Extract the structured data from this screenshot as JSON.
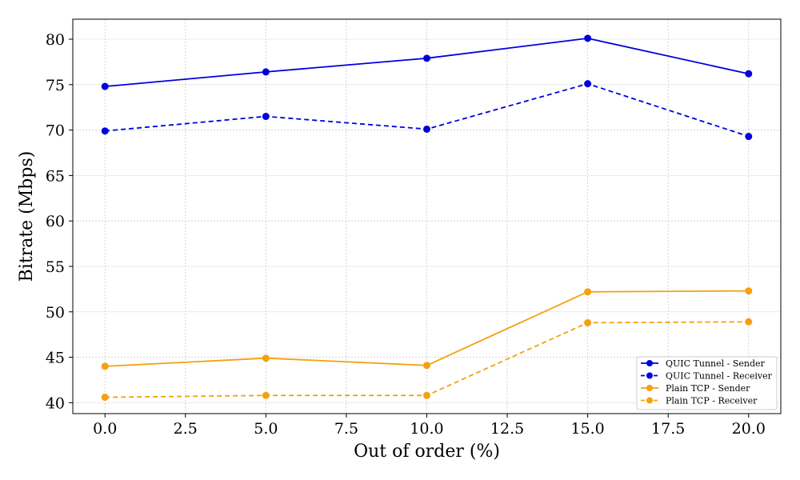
{
  "chart_data": {
    "type": "line",
    "title": "",
    "xlabel": "Out of order (%)",
    "ylabel": "Bitrate (Mbps)",
    "xlim": [
      -1,
      21
    ],
    "ylim": [
      38.8,
      82.2
    ],
    "x_ticks": [
      0.0,
      2.5,
      5.0,
      7.5,
      10.0,
      12.5,
      15.0,
      17.5,
      20.0
    ],
    "x_tick_labels": [
      "0.0",
      "2.5",
      "5.0",
      "7.5",
      "10.0",
      "12.5",
      "15.0",
      "17.5",
      "20.0"
    ],
    "y_ticks": [
      40,
      45,
      50,
      55,
      60,
      65,
      70,
      75,
      80
    ],
    "y_tick_labels": [
      "40",
      "45",
      "50",
      "55",
      "60",
      "65",
      "70",
      "75",
      "80"
    ],
    "grid": true,
    "legend_position": "bottom-right",
    "x": [
      0,
      5,
      10,
      15,
      20
    ],
    "series": [
      {
        "name": "QUIC Tunnel - Sender",
        "values": [
          74.8,
          76.4,
          77.9,
          80.1,
          76.2
        ],
        "color": "#0000dd",
        "dash": "solid"
      },
      {
        "name": "QUIC Tunnel - Receiver",
        "values": [
          69.9,
          71.5,
          70.1,
          75.1,
          69.3
        ],
        "color": "#0000dd",
        "dash": "dashed"
      },
      {
        "name": "Plain TCP - Sender",
        "values": [
          44.0,
          44.9,
          44.1,
          52.2,
          52.3
        ],
        "color": "#f5a00f",
        "dash": "solid"
      },
      {
        "name": "Plain TCP - Receiver",
        "values": [
          40.6,
          40.8,
          40.8,
          48.8,
          48.9
        ],
        "color": "#f5a00f",
        "dash": "dashed"
      }
    ]
  }
}
